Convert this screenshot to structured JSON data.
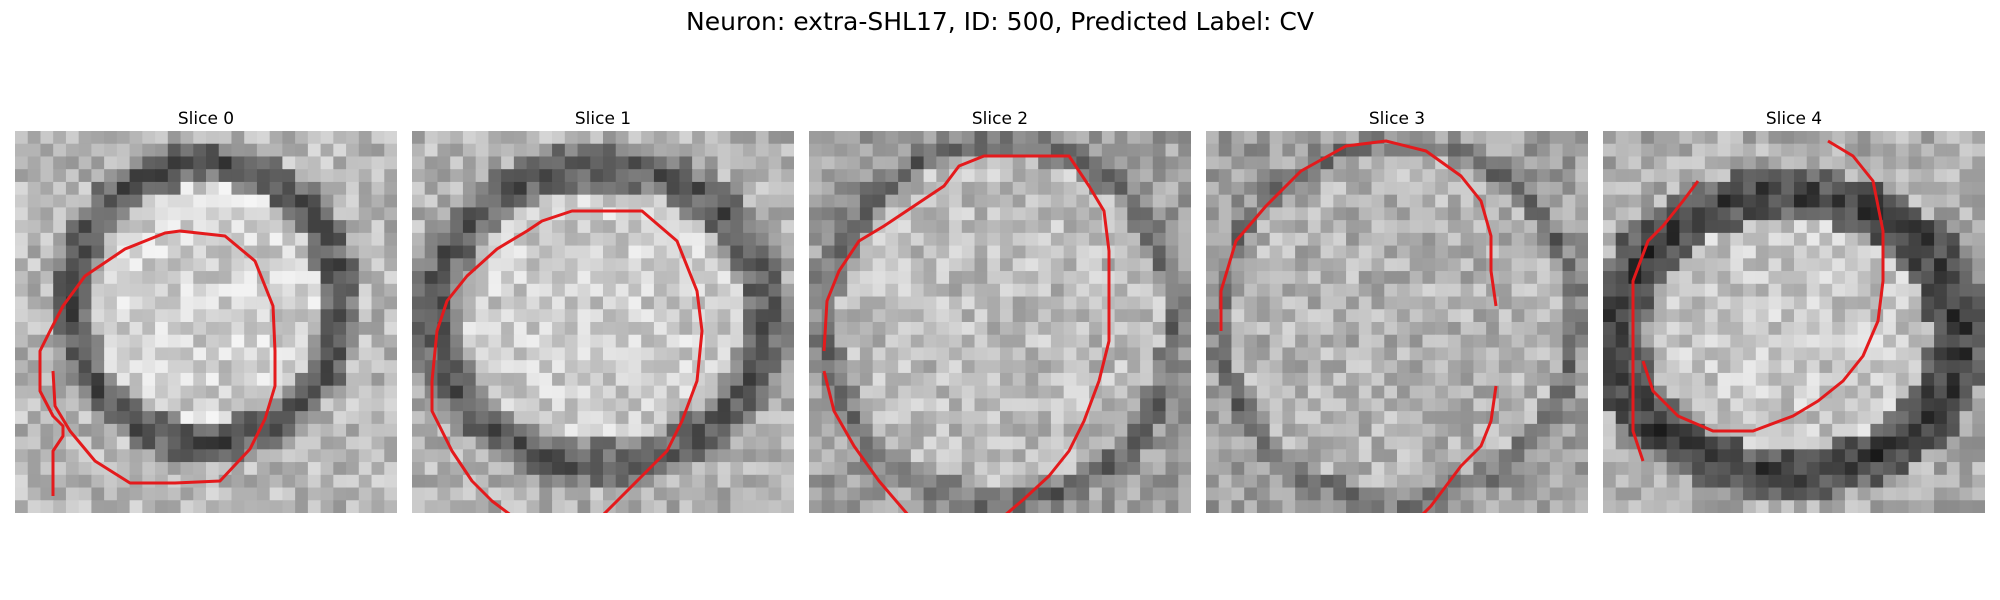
{
  "figure": {
    "title": "Neuron: extra-SHL17, ID: 500, Predicted Label: CV",
    "contour_color": "#e41a1c",
    "panels": [
      {
        "title": "Slice 0",
        "description": "grayscale EM patch: bright ellipse with dark border, red contour"
      },
      {
        "title": "Slice 1",
        "description": "grayscale EM patch: bright ellipse with dark border, red contour"
      },
      {
        "title": "Slice 2",
        "description": "grayscale EM patch: bright textured ellipse, red contour"
      },
      {
        "title": "Slice 3",
        "description": "grayscale EM patch: textured ellipse, red contour open on right"
      },
      {
        "title": "Slice 4",
        "description": "grayscale EM patch: bright ellipse with dark border, red contour"
      }
    ]
  }
}
